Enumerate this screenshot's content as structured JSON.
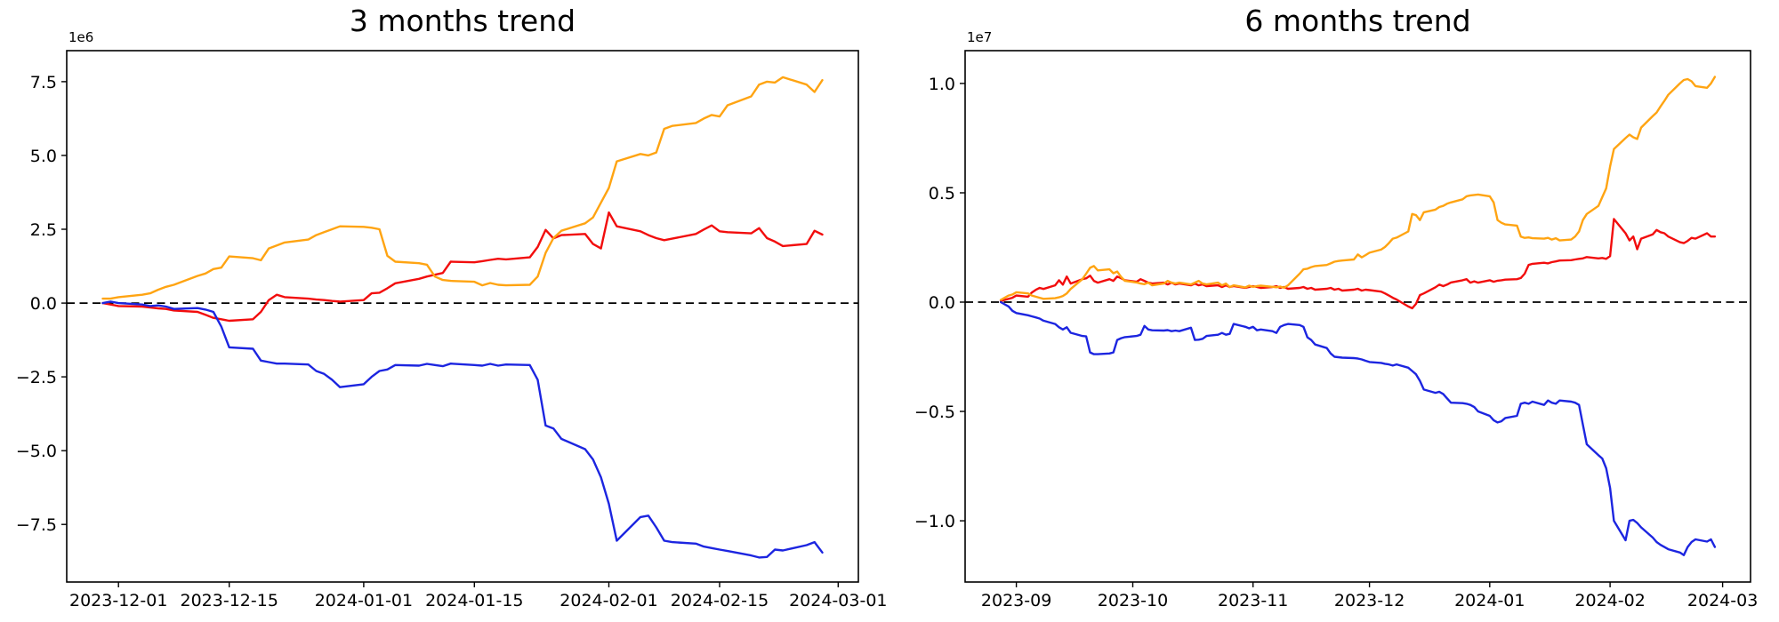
{
  "figure": {
    "background": "#ffffff"
  },
  "charts": [
    {
      "title": "3 months trend",
      "offset_label": "1e6"
    },
    {
      "title": "6 months trend",
      "offset_label": "1e7"
    }
  ],
  "chart_data": [
    {
      "type": "line",
      "name": "three-months-trend",
      "title": "3 months trend",
      "xlabel": "",
      "ylabel": "",
      "grid": false,
      "legend": false,
      "y_offset_label": "1e6",
      "y_values_unit": "1e6",
      "ylim": [
        -9.45,
        8.55
      ],
      "zero_line": {
        "style": "dashed",
        "color": "#000000"
      },
      "y_ticks": [
        {
          "value": 7.5,
          "label": "7.5"
        },
        {
          "value": 5.0,
          "label": "5.0"
        },
        {
          "value": 2.5,
          "label": "2.5"
        },
        {
          "value": 0.0,
          "label": "0.0"
        },
        {
          "value": -2.5,
          "label": "−2.5"
        },
        {
          "value": -5.0,
          "label": "−5.0"
        },
        {
          "value": -7.5,
          "label": "−7.5"
        }
      ],
      "x_ticks": [
        {
          "date": "2023-12-01",
          "label": "2023-12-01"
        },
        {
          "date": "2023-12-15",
          "label": "2023-12-15"
        },
        {
          "date": "2024-01-01",
          "label": "2024-01-01"
        },
        {
          "date": "2024-01-15",
          "label": "2024-01-15"
        },
        {
          "date": "2024-02-01",
          "label": "2024-02-01"
        },
        {
          "date": "2024-02-15",
          "label": "2024-02-15"
        },
        {
          "date": "2024-03-01",
          "label": "2024-03-01"
        }
      ],
      "x": [
        "2023-11-29",
        "2023-11-30",
        "2023-12-01",
        "2023-12-04",
        "2023-12-05",
        "2023-12-06",
        "2023-12-07",
        "2023-12-08",
        "2023-12-11",
        "2023-12-12",
        "2023-12-13",
        "2023-12-14",
        "2023-12-15",
        "2023-12-18",
        "2023-12-19",
        "2023-12-20",
        "2023-12-21",
        "2023-12-22",
        "2023-12-25",
        "2023-12-26",
        "2023-12-27",
        "2023-12-28",
        "2023-12-29",
        "2024-01-01",
        "2024-01-02",
        "2024-01-03",
        "2024-01-04",
        "2024-01-05",
        "2024-01-08",
        "2024-01-09",
        "2024-01-10",
        "2024-01-11",
        "2024-01-12",
        "2024-01-15",
        "2024-01-16",
        "2024-01-17",
        "2024-01-18",
        "2024-01-19",
        "2024-01-22",
        "2024-01-23",
        "2024-01-24",
        "2024-01-25",
        "2024-01-26",
        "2024-01-29",
        "2024-01-30",
        "2024-01-31",
        "2024-02-01",
        "2024-02-02",
        "2024-02-05",
        "2024-02-06",
        "2024-02-07",
        "2024-02-08",
        "2024-02-09",
        "2024-02-12",
        "2024-02-13",
        "2024-02-14",
        "2024-02-15",
        "2024-02-16",
        "2024-02-19",
        "2024-02-20",
        "2024-02-21",
        "2024-02-22",
        "2024-02-23",
        "2024-02-26",
        "2024-02-27",
        "2024-02-28"
      ],
      "series": [
        {
          "name": "red",
          "color": "#f20d0d",
          "values": [
            0.0,
            -0.05,
            -0.1,
            -0.12,
            -0.15,
            -0.18,
            -0.2,
            -0.25,
            -0.3,
            -0.4,
            -0.5,
            -0.55,
            -0.6,
            -0.55,
            -0.3,
            0.1,
            0.28,
            0.2,
            0.15,
            0.12,
            0.1,
            0.07,
            0.05,
            0.1,
            0.33,
            0.35,
            0.5,
            0.67,
            0.82,
            0.9,
            0.96,
            1.02,
            1.4,
            1.38,
            1.42,
            1.46,
            1.5,
            1.48,
            1.55,
            1.9,
            2.48,
            2.19,
            2.3,
            2.34,
            2.0,
            1.85,
            3.07,
            2.6,
            2.43,
            2.3,
            2.2,
            2.13,
            2.18,
            2.34,
            2.49,
            2.63,
            2.43,
            2.4,
            2.36,
            2.54,
            2.2,
            2.08,
            1.93,
            2.0,
            2.45,
            2.32
          ]
        },
        {
          "name": "orange",
          "color": "#ffa412",
          "values": [
            0.15,
            0.15,
            0.2,
            0.28,
            0.33,
            0.45,
            0.55,
            0.62,
            0.92,
            1.0,
            1.15,
            1.2,
            1.58,
            1.52,
            1.45,
            1.85,
            1.95,
            2.05,
            2.15,
            2.3,
            2.4,
            2.5,
            2.6,
            2.58,
            2.55,
            2.5,
            1.6,
            1.4,
            1.35,
            1.3,
            0.9,
            0.78,
            0.75,
            0.72,
            0.6,
            0.68,
            0.62,
            0.6,
            0.62,
            0.9,
            1.7,
            2.2,
            2.45,
            2.7,
            2.9,
            3.4,
            3.9,
            4.8,
            5.05,
            5.0,
            5.1,
            5.9,
            6.0,
            6.1,
            6.25,
            6.37,
            6.32,
            6.7,
            7.0,
            7.4,
            7.5,
            7.47,
            7.65,
            7.4,
            7.15,
            7.55
          ]
        },
        {
          "name": "blue",
          "color": "#1c25e0",
          "values": [
            0.0,
            0.05,
            0.0,
            -0.05,
            -0.1,
            -0.08,
            -0.12,
            -0.2,
            -0.17,
            -0.22,
            -0.3,
            -0.8,
            -1.5,
            -1.55,
            -1.95,
            -2.0,
            -2.05,
            -2.05,
            -2.08,
            -2.3,
            -2.4,
            -2.6,
            -2.85,
            -2.75,
            -2.5,
            -2.3,
            -2.25,
            -2.1,
            -2.12,
            -2.06,
            -2.1,
            -2.14,
            -2.05,
            -2.1,
            -2.12,
            -2.06,
            -2.12,
            -2.08,
            -2.1,
            -2.6,
            -4.15,
            -4.25,
            -4.6,
            -4.95,
            -5.3,
            -5.9,
            -6.8,
            -8.05,
            -7.25,
            -7.2,
            -7.6,
            -8.05,
            -8.1,
            -8.15,
            -8.25,
            -8.3,
            -8.35,
            -8.4,
            -8.55,
            -8.62,
            -8.6,
            -8.35,
            -8.38,
            -8.2,
            -8.1,
            -8.45
          ]
        }
      ]
    },
    {
      "type": "line",
      "name": "six-months-trend",
      "title": "6 months trend",
      "xlabel": "",
      "ylabel": "",
      "grid": false,
      "legend": false,
      "y_offset_label": "1e7",
      "y_values_unit": "1e7",
      "ylim": [
        -1.28,
        1.15
      ],
      "zero_line": {
        "style": "dashed",
        "color": "#000000"
      },
      "y_ticks": [
        {
          "value": 1.0,
          "label": "1.0"
        },
        {
          "value": 0.5,
          "label": "0.5"
        },
        {
          "value": 0.0,
          "label": "0.0"
        },
        {
          "value": -0.5,
          "label": "−0.5"
        },
        {
          "value": -1.0,
          "label": "−1.0"
        }
      ],
      "x_ticks": [
        {
          "date": "2023-09-01",
          "label": "2023-09"
        },
        {
          "date": "2023-10-01",
          "label": "2023-10"
        },
        {
          "date": "2023-11-01",
          "label": "2023-11"
        },
        {
          "date": "2023-12-01",
          "label": "2023-12"
        },
        {
          "date": "2024-01-01",
          "label": "2024-01"
        },
        {
          "date": "2024-02-01",
          "label": "2024-02"
        },
        {
          "date": "2024-03-01",
          "label": "2024-03"
        }
      ],
      "x": [
        "2023-08-28",
        "2023-08-29",
        "2023-08-30",
        "2023-08-31",
        "2023-09-01",
        "2023-09-04",
        "2023-09-05",
        "2023-09-06",
        "2023-09-07",
        "2023-09-08",
        "2023-09-11",
        "2023-09-12",
        "2023-09-13",
        "2023-09-14",
        "2023-09-15",
        "2023-09-18",
        "2023-09-19",
        "2023-09-20",
        "2023-09-21",
        "2023-09-22",
        "2023-09-25",
        "2023-09-26",
        "2023-09-27",
        "2023-09-28",
        "2023-09-29",
        "2023-10-02",
        "2023-10-03",
        "2023-10-04",
        "2023-10-05",
        "2023-10-06",
        "2023-10-09",
        "2023-10-10",
        "2023-10-11",
        "2023-10-12",
        "2023-10-13",
        "2023-10-16",
        "2023-10-17",
        "2023-10-18",
        "2023-10-19",
        "2023-10-20",
        "2023-10-23",
        "2023-10-24",
        "2023-10-25",
        "2023-10-26",
        "2023-10-27",
        "2023-10-30",
        "2023-10-31",
        "2023-11-01",
        "2023-11-02",
        "2023-11-03",
        "2023-11-06",
        "2023-11-07",
        "2023-11-08",
        "2023-11-09",
        "2023-11-10",
        "2023-11-13",
        "2023-11-14",
        "2023-11-15",
        "2023-11-16",
        "2023-11-17",
        "2023-11-20",
        "2023-11-21",
        "2023-11-22",
        "2023-11-23",
        "2023-11-24",
        "2023-11-27",
        "2023-11-28",
        "2023-11-29",
        "2023-11-30",
        "2023-12-01",
        "2023-12-04",
        "2023-12-05",
        "2023-12-06",
        "2023-12-07",
        "2023-12-08",
        "2023-12-11",
        "2023-12-12",
        "2023-12-13",
        "2023-12-14",
        "2023-12-15",
        "2023-12-18",
        "2023-12-19",
        "2023-12-20",
        "2023-12-21",
        "2023-12-22",
        "2023-12-25",
        "2023-12-26",
        "2023-12-27",
        "2023-12-28",
        "2023-12-29",
        "2024-01-01",
        "2024-01-02",
        "2024-01-03",
        "2024-01-04",
        "2024-01-05",
        "2024-01-08",
        "2024-01-09",
        "2024-01-10",
        "2024-01-11",
        "2024-01-12",
        "2024-01-15",
        "2024-01-16",
        "2024-01-17",
        "2024-01-18",
        "2024-01-19",
        "2024-01-22",
        "2024-01-23",
        "2024-01-24",
        "2024-01-25",
        "2024-01-26",
        "2024-01-29",
        "2024-01-30",
        "2024-01-31",
        "2024-02-01",
        "2024-02-02",
        "2024-02-05",
        "2024-02-06",
        "2024-02-07",
        "2024-02-08",
        "2024-02-09",
        "2024-02-12",
        "2024-02-13",
        "2024-02-14",
        "2024-02-15",
        "2024-02-16",
        "2024-02-19",
        "2024-02-20",
        "2024-02-21",
        "2024-02-22",
        "2024-02-23",
        "2024-02-26",
        "2024-02-27",
        "2024-02-28"
      ],
      "series": [
        {
          "name": "red",
          "color": "#f20d0d",
          "values": [
            0.005,
            0.01,
            0.015,
            0.02,
            0.03,
            0.025,
            0.044,
            0.056,
            0.065,
            0.06,
            0.077,
            0.1,
            0.08,
            0.117,
            0.085,
            0.105,
            0.109,
            0.121,
            0.097,
            0.089,
            0.105,
            0.097,
            0.117,
            0.109,
            0.1,
            0.093,
            0.105,
            0.097,
            0.089,
            0.085,
            0.089,
            0.081,
            0.089,
            0.081,
            0.085,
            0.077,
            0.085,
            0.077,
            0.081,
            0.073,
            0.077,
            0.069,
            0.077,
            0.069,
            0.073,
            0.065,
            0.069,
            0.073,
            0.069,
            0.065,
            0.069,
            0.073,
            0.065,
            0.069,
            0.061,
            0.065,
            0.069,
            0.061,
            0.065,
            0.057,
            0.061,
            0.065,
            0.057,
            0.061,
            0.053,
            0.057,
            0.061,
            0.053,
            0.057,
            0.055,
            0.048,
            0.04,
            0.03,
            0.02,
            0.012,
            -0.02,
            -0.028,
            -0.008,
            0.032,
            0.04,
            0.068,
            0.08,
            0.073,
            0.08,
            0.09,
            0.1,
            0.105,
            0.089,
            0.095,
            0.089,
            0.1,
            0.093,
            0.098,
            0.1,
            0.103,
            0.105,
            0.11,
            0.13,
            0.17,
            0.175,
            0.18,
            0.177,
            0.183,
            0.186,
            0.19,
            0.192,
            0.195,
            0.198,
            0.2,
            0.206,
            0.2,
            0.202,
            0.198,
            0.21,
            0.38,
            0.315,
            0.282,
            0.3,
            0.242,
            0.29,
            0.31,
            0.33,
            0.32,
            0.315,
            0.3,
            0.274,
            0.27,
            0.28,
            0.294,
            0.29,
            0.315,
            0.3,
            0.3
          ]
        },
        {
          "name": "orange",
          "color": "#ffa412",
          "values": [
            0.01,
            0.02,
            0.03,
            0.035,
            0.045,
            0.04,
            0.03,
            0.025,
            0.02,
            0.015,
            0.018,
            0.022,
            0.028,
            0.04,
            0.06,
            0.105,
            0.13,
            0.157,
            0.165,
            0.145,
            0.15,
            0.132,
            0.14,
            0.115,
            0.097,
            0.09,
            0.085,
            0.082,
            0.089,
            0.077,
            0.085,
            0.097,
            0.089,
            0.085,
            0.089,
            0.081,
            0.089,
            0.097,
            0.085,
            0.081,
            0.089,
            0.077,
            0.085,
            0.069,
            0.077,
            0.067,
            0.075,
            0.07,
            0.073,
            0.075,
            0.07,
            0.068,
            0.071,
            0.066,
            0.077,
            0.13,
            0.15,
            0.153,
            0.16,
            0.165,
            0.17,
            0.177,
            0.185,
            0.188,
            0.19,
            0.195,
            0.218,
            0.205,
            0.215,
            0.226,
            0.24,
            0.252,
            0.27,
            0.29,
            0.295,
            0.323,
            0.403,
            0.398,
            0.375,
            0.411,
            0.423,
            0.435,
            0.44,
            0.45,
            0.456,
            0.47,
            0.484,
            0.488,
            0.49,
            0.492,
            0.484,
            0.456,
            0.375,
            0.363,
            0.355,
            0.35,
            0.3,
            0.294,
            0.296,
            0.292,
            0.29,
            0.294,
            0.286,
            0.292,
            0.282,
            0.286,
            0.3,
            0.323,
            0.375,
            0.403,
            0.44,
            0.48,
            0.52,
            0.62,
            0.7,
            0.75,
            0.766,
            0.754,
            0.746,
            0.798,
            0.851,
            0.867,
            0.895,
            0.92,
            0.948,
            1.0,
            1.016,
            1.02,
            1.01,
            0.988,
            0.98,
            1.0,
            1.03
          ]
        },
        {
          "name": "blue",
          "color": "#1c25e0",
          "values": [
            0.0,
            -0.01,
            -0.02,
            -0.04,
            -0.05,
            -0.06,
            -0.065,
            -0.07,
            -0.075,
            -0.085,
            -0.1,
            -0.115,
            -0.125,
            -0.115,
            -0.14,
            -0.155,
            -0.157,
            -0.23,
            -0.238,
            -0.238,
            -0.235,
            -0.23,
            -0.173,
            -0.165,
            -0.16,
            -0.155,
            -0.149,
            -0.109,
            -0.125,
            -0.129,
            -0.13,
            -0.128,
            -0.133,
            -0.13,
            -0.133,
            -0.117,
            -0.173,
            -0.172,
            -0.168,
            -0.155,
            -0.149,
            -0.141,
            -0.149,
            -0.145,
            -0.1,
            -0.113,
            -0.12,
            -0.113,
            -0.129,
            -0.125,
            -0.133,
            -0.141,
            -0.113,
            -0.105,
            -0.1,
            -0.105,
            -0.113,
            -0.161,
            -0.173,
            -0.194,
            -0.21,
            -0.235,
            -0.25,
            -0.252,
            -0.254,
            -0.256,
            -0.258,
            -0.262,
            -0.268,
            -0.274,
            -0.278,
            -0.282,
            -0.285,
            -0.29,
            -0.285,
            -0.3,
            -0.315,
            -0.33,
            -0.36,
            -0.4,
            -0.415,
            -0.41,
            -0.42,
            -0.44,
            -0.46,
            -0.462,
            -0.465,
            -0.47,
            -0.48,
            -0.5,
            -0.52,
            -0.54,
            -0.55,
            -0.545,
            -0.53,
            -0.52,
            -0.465,
            -0.46,
            -0.465,
            -0.455,
            -0.47,
            -0.45,
            -0.46,
            -0.465,
            -0.45,
            -0.455,
            -0.46,
            -0.47,
            -0.56,
            -0.65,
            -0.7,
            -0.715,
            -0.76,
            -0.85,
            -1.0,
            -1.089,
            -1.0,
            -0.996,
            -1.01,
            -1.03,
            -1.077,
            -1.097,
            -1.11,
            -1.12,
            -1.13,
            -1.145,
            -1.157,
            -1.12,
            -1.097,
            -1.085,
            -1.095,
            -1.085,
            -1.12
          ]
        }
      ]
    }
  ]
}
